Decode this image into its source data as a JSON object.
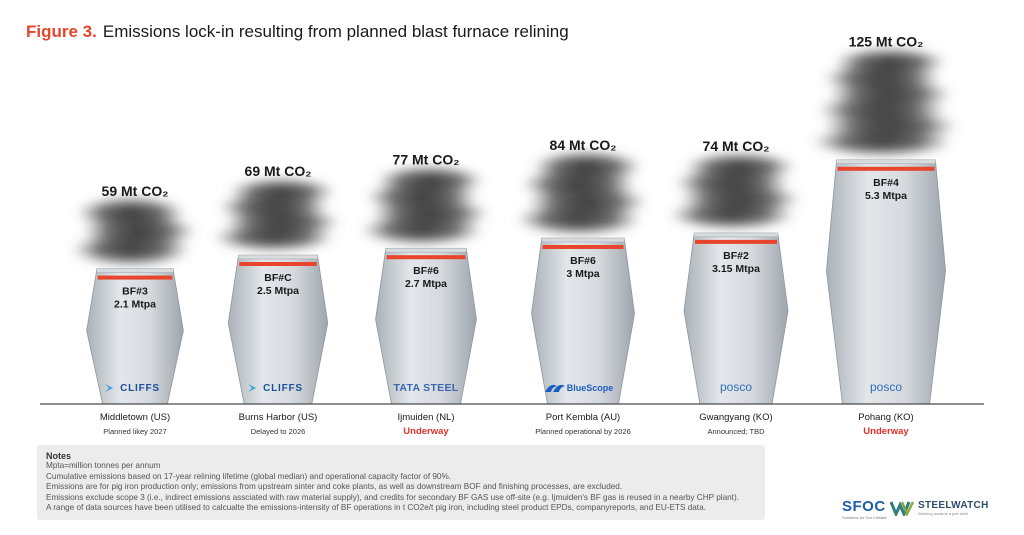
{
  "figure": {
    "number_label": "Figure 3.",
    "title": "Emissions lock-in resulting from planned blast furnace relining"
  },
  "chart_data": {
    "type": "bar",
    "title": "Emissions lock-in resulting from planned blast furnace relining",
    "value_unit": "Mt CO₂",
    "categories": [
      "Middletown (US)",
      "Burns Harbor (US)",
      "Ijmuiden (NL)",
      "Port Kembla (AU)",
      "Gwangyang (KO)",
      "Pohang (KO)"
    ],
    "values": [
      59,
      69,
      77,
      84,
      74,
      125
    ],
    "value_labels": [
      "59 Mt CO₂",
      "69 Mt CO₂",
      "77 Mt CO₂",
      "84 Mt CO₂",
      "74 Mt CO₂",
      "125 Mt CO₂"
    ],
    "furnaces": [
      {
        "site": "Middletown (US)",
        "furnace": "BF#3",
        "capacity": "2.1 Mtpa",
        "emissions": 59,
        "emissions_label": "59 Mt CO₂",
        "company": "CLIFFS",
        "logo": "cliffs-logo",
        "status": "Planned likey 2027",
        "status_highlight": false
      },
      {
        "site": "Burns Harbor (US)",
        "furnace": "BF#C",
        "capacity": "2.5 Mtpa",
        "emissions": 69,
        "emissions_label": "69 Mt CO₂",
        "company": "CLIFFS",
        "logo": "cliffs-logo",
        "status": "Delayed to 2026",
        "status_highlight": false
      },
      {
        "site": "Ijmuiden (NL)",
        "furnace": "BF#6",
        "capacity": "2.7 Mtpa",
        "emissions": 77,
        "emissions_label": "77 Mt CO₂",
        "company": "TATA STEEL",
        "logo": "tata-steel-logo",
        "status": "Underway",
        "status_highlight": true
      },
      {
        "site": "Port Kembla (AU)",
        "furnace": "BF#6",
        "capacity": "3 Mtpa",
        "emissions": 84,
        "emissions_label": "84 Mt CO₂",
        "company": "BlueScope",
        "logo": "bluescope-logo",
        "status": "Planned operational by 2026",
        "status_highlight": false
      },
      {
        "site": "Gwangyang (KO)",
        "furnace": "BF#2",
        "capacity": "3.15 Mtpa",
        "emissions": 74,
        "emissions_label": "74 Mt CO₂",
        "company": "posco",
        "logo": "posco-logo",
        "status": "Announced; TBD",
        "status_highlight": false
      },
      {
        "site": "Pohang (KO)",
        "furnace": "BF#4",
        "capacity": "5.3 Mtpa",
        "emissions": 125,
        "emissions_label": "125 Mt CO₂",
        "company": "posco",
        "logo": "posco-logo",
        "status": "Underway",
        "status_highlight": true
      }
    ]
  },
  "notes": {
    "title": "Notes",
    "lines": [
      "Mpta=million tonnes per annum",
      "Cumulative emissions based on 17-year relining lifetime (global median) and operational capacity factor of 90%.",
      "Emissions are for pig iron production only; emissions from upstream sinter and coke plants, as well as downstream BOF and finishing processes, are excluded.",
      "Emissions exclude scope 3 (i.e., indirect emissions assciated with raw material supply), and credits for secondary BF GAS use off-site (e.g. Ijmuiden's BF gas is reused in a nearby CHP plant).",
      "A range of data sources have been utilised to calcualte the emissions-intensity of BF operations in t CO2e/t pig iron, including steel product EPDs, companyreports, and EU-ETS data."
    ]
  },
  "branding": {
    "sfoc_name": "SFOC",
    "sfoc_tagline": "Solutions for Our Climate",
    "steelwatch_name": "STEELWATCH",
    "steelwatch_tagline": "Working towards a just steel"
  },
  "colors": {
    "accent": "#e8452c",
    "furnace_fill": "#c9ced3",
    "status_red": "#e0322a",
    "cliffs_blue": "#1b4f9c",
    "tata_blue": "#3b66b0",
    "bluescope_blue": "#1a5ec0",
    "posco_blue": "#2a6fb8"
  }
}
